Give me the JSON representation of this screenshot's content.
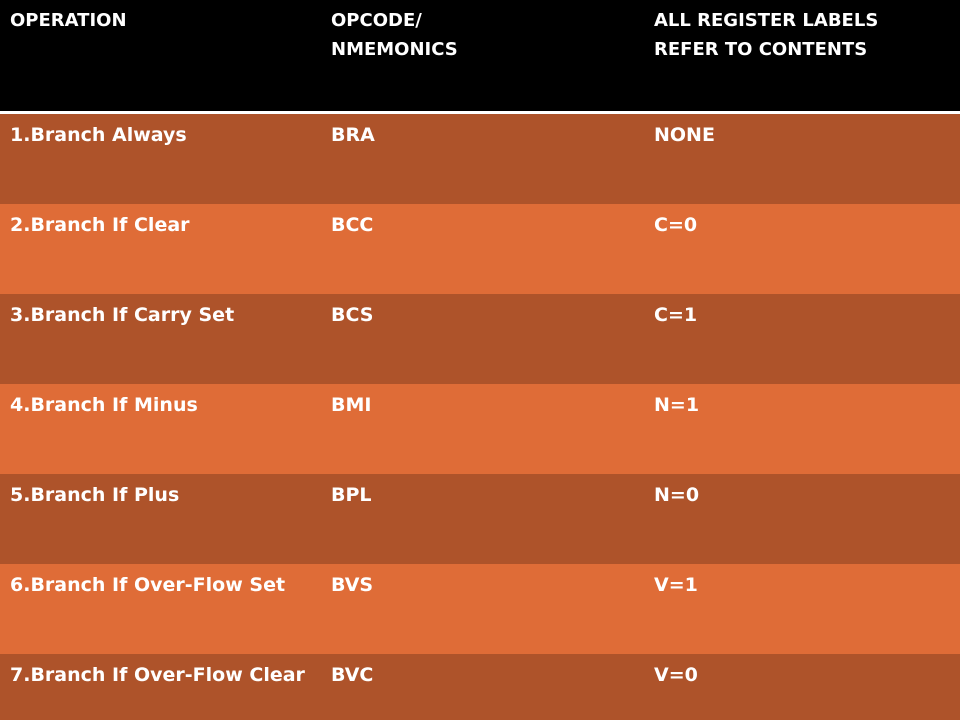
{
  "header": {
    "operation": "OPERATION",
    "opcode_line1": "OPCODE/",
    "opcode_line2": "NMEMONICS",
    "labels_line1": "ALL REGISTER LABELS",
    "labels_line2": "REFER TO  CONTENTS"
  },
  "rows": [
    {
      "operation": "1.Branch Always",
      "opcode": "BRA",
      "condition": "NONE"
    },
    {
      "operation": "2.Branch If Clear",
      "opcode": "BCC",
      "condition": "C=0"
    },
    {
      "operation": "3.Branch If Carry Set",
      "opcode": "BCS",
      "condition": "C=1"
    },
    {
      "operation": "4.Branch If Minus",
      "opcode": "BMI",
      "condition": "N=1"
    },
    {
      "operation": "5.Branch If Plus",
      "opcode": "BPL",
      "condition": "N=0"
    },
    {
      "operation": "6.Branch If Over-Flow Set",
      "opcode": "BVS",
      "condition": "V=1"
    },
    {
      "operation": "7.Branch If Over-Flow Clear",
      "opcode": "BVC",
      "condition": "V=0"
    }
  ],
  "colors": {
    "header_bg": "#000000",
    "row_dark": "#ae532a",
    "row_light": "#df6c37",
    "text": "#ffffff"
  }
}
